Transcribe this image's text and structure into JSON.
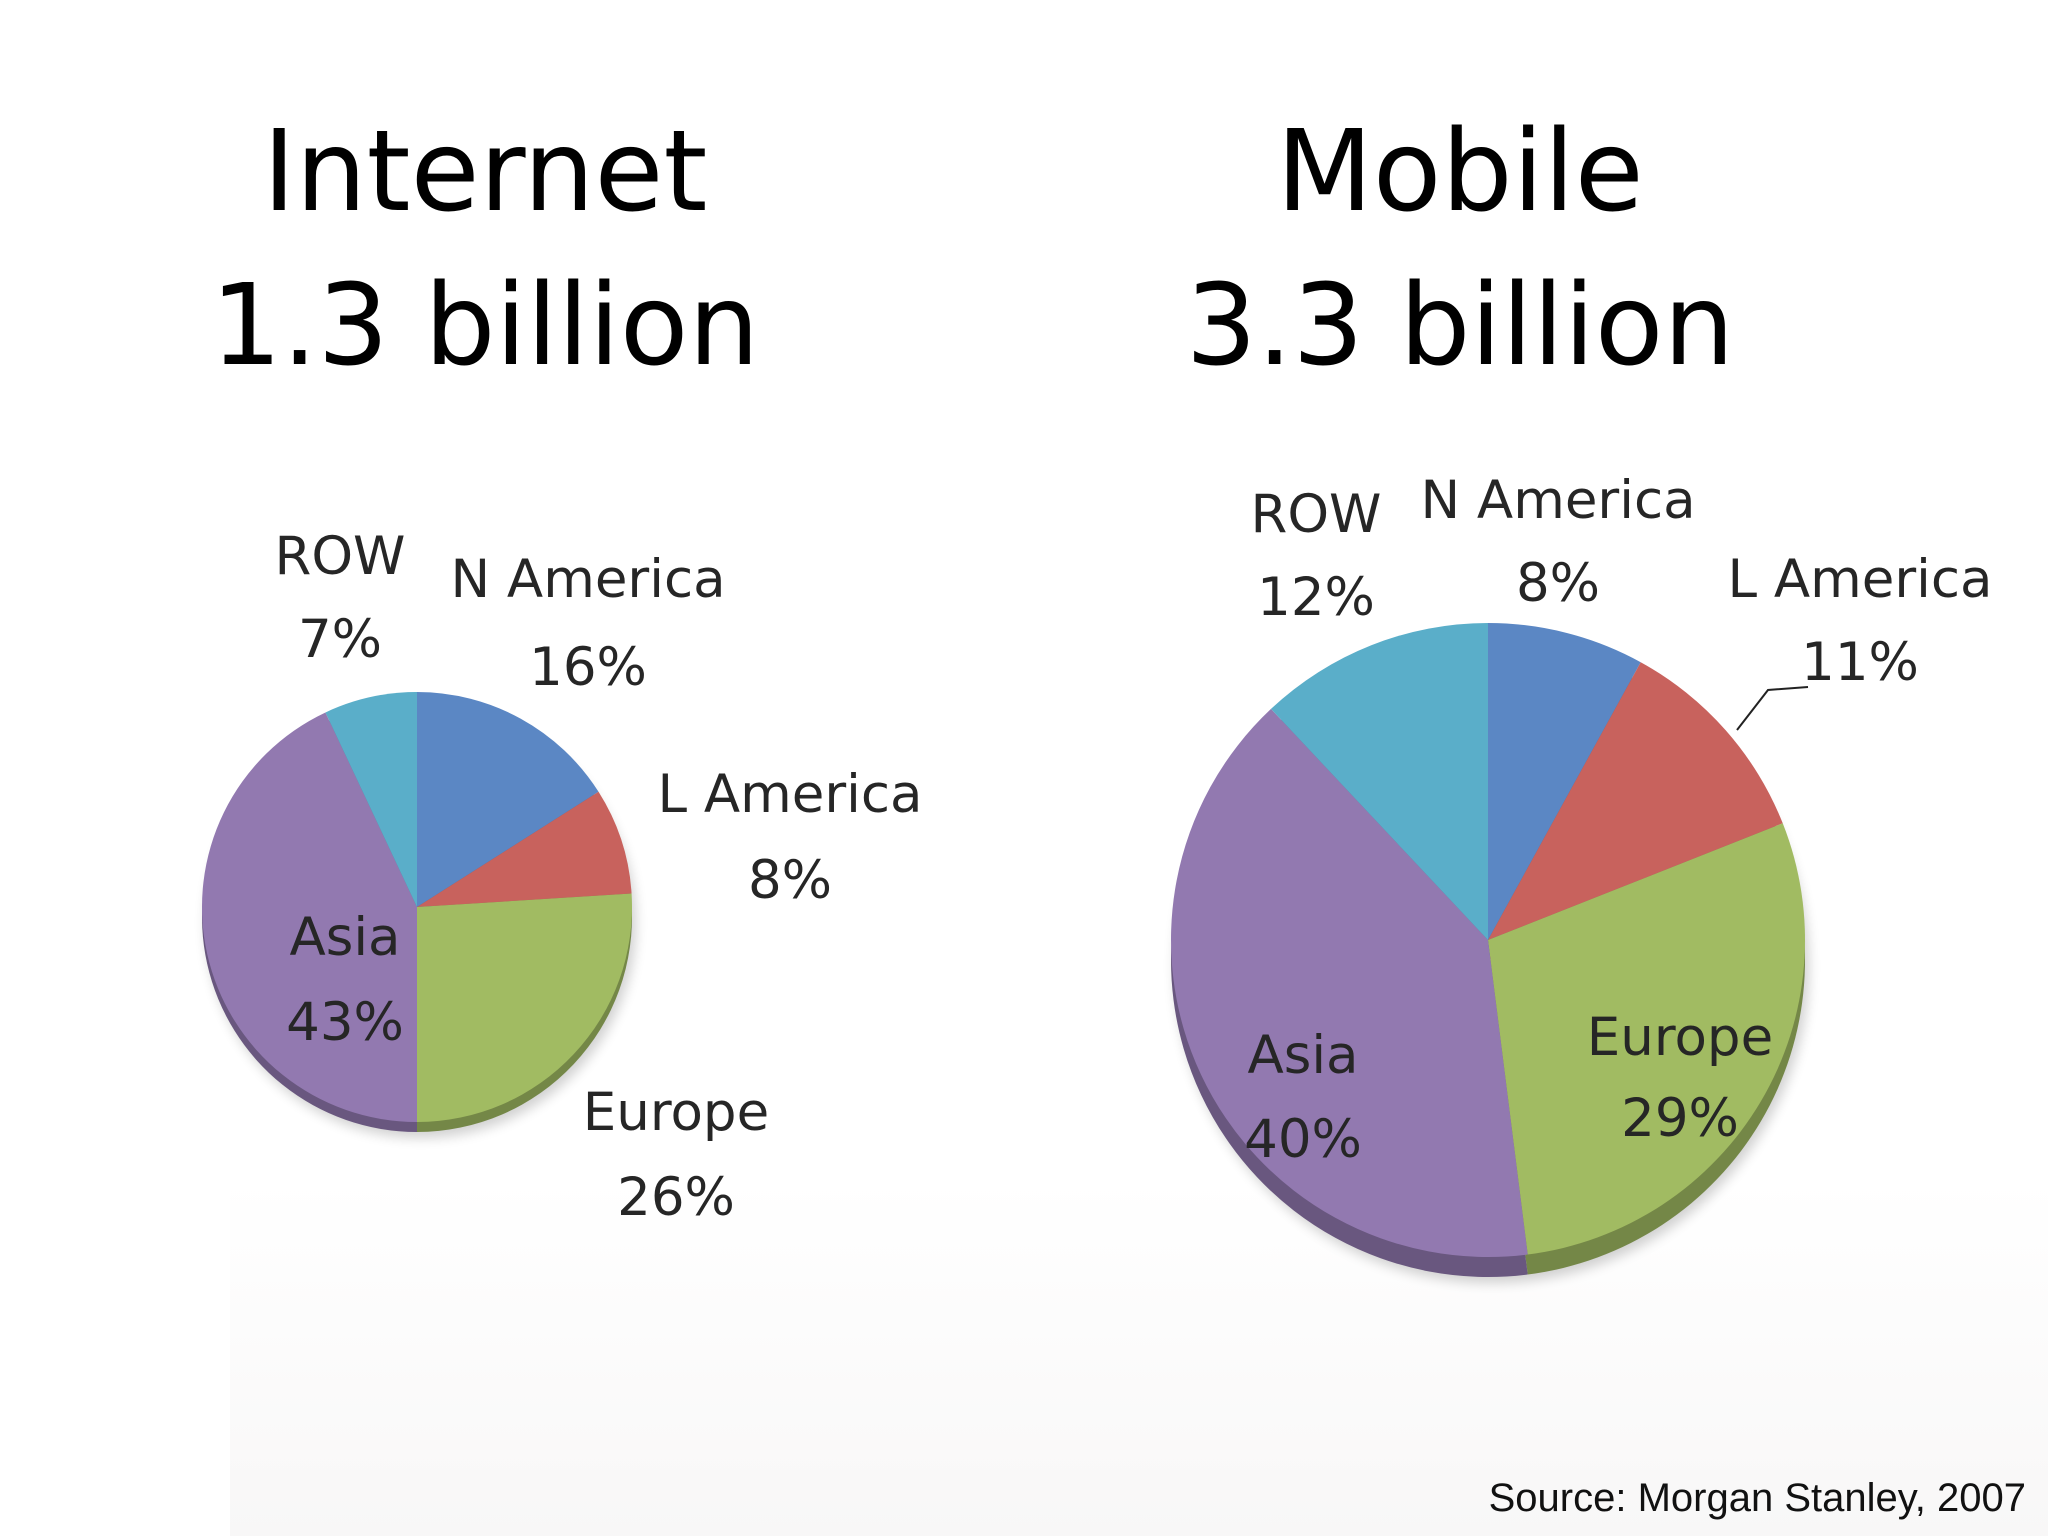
{
  "colors": {
    "N America": "#5b87c4",
    "L America": "#c8625d",
    "Europe": "#a1bb62",
    "Asia": "#9279b0",
    "ROW": "#5aaec9"
  },
  "chart_data": [
    {
      "type": "pie",
      "title": "Internet",
      "subtitle": "1.3 billion",
      "slices": [
        {
          "label": "N America",
          "value": 16,
          "value_label": "16%"
        },
        {
          "label": "L America",
          "value": 8,
          "value_label": "8%"
        },
        {
          "label": "Europe",
          "value": 26,
          "value_label": "26%"
        },
        {
          "label": "Asia",
          "value": 43,
          "value_label": "43%"
        },
        {
          "label": "ROW",
          "value": 7,
          "value_label": "7%"
        }
      ]
    },
    {
      "type": "pie",
      "title": "Mobile",
      "subtitle": "3.3 billion",
      "slices": [
        {
          "label": "N America",
          "value": 8,
          "value_label": "8%"
        },
        {
          "label": "L America",
          "value": 11,
          "value_label": "11%"
        },
        {
          "label": "Europe",
          "value": 29,
          "value_label": "29%"
        },
        {
          "label": "Asia",
          "value": 40,
          "value_label": "40%"
        },
        {
          "label": "ROW",
          "value": 12,
          "value_label": "12%"
        }
      ]
    }
  ],
  "source": "Source: Morgan Stanley, 2007"
}
